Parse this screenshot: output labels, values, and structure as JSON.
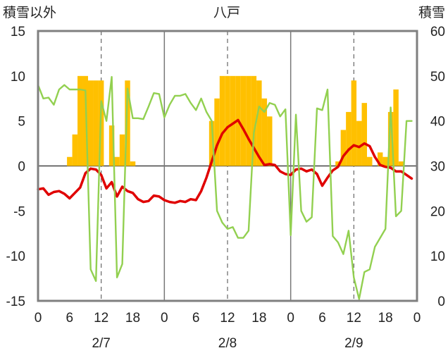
{
  "chart_data": {
    "type": "bar+line",
    "title": "八戸",
    "ylabel_left": "積雪以外",
    "ylabel_right": "積雪",
    "ylim_left": [
      -15,
      15
    ],
    "yticks_left": [
      "15",
      "10",
      "5",
      "0",
      "-5",
      "-10",
      "-15"
    ],
    "ylim_right": [
      0,
      60
    ],
    "yticks_right": [
      "60",
      "50",
      "40",
      "30",
      "20",
      "10",
      "0"
    ],
    "x_range_hours": [
      0,
      72
    ],
    "xtick_labels": [
      "0",
      "6",
      "12",
      "18",
      "0",
      "6",
      "12",
      "18",
      "0",
      "6",
      "12",
      "18",
      "0"
    ],
    "date_labels": [
      "2/7",
      "2/8",
      "2/9"
    ],
    "snow_depth_bars": {
      "axis": "right",
      "color": "#FFC000",
      "x_hour": [
        6,
        7,
        8,
        9,
        10,
        11,
        12,
        14,
        15,
        16,
        17,
        18,
        33,
        34,
        35,
        36,
        37,
        38,
        39,
        40,
        41,
        42,
        43,
        44,
        57,
        58,
        59,
        60,
        61,
        62,
        63,
        64,
        65,
        66,
        67,
        68,
        69
      ],
      "values": [
        32,
        37,
        50,
        50,
        49,
        49,
        49,
        39,
        32,
        37,
        49,
        31,
        40,
        45,
        50,
        50,
        50,
        50,
        50,
        50,
        50,
        49,
        45,
        41,
        31,
        38,
        42,
        49,
        40,
        44,
        32,
        30,
        33,
        32,
        42,
        47,
        31
      ]
    },
    "series": [
      {
        "axis": "left",
        "color": "#E00000",
        "x_hour": [
          0,
          1,
          2,
          3,
          4,
          5,
          6,
          7,
          8,
          9,
          10,
          11,
          12,
          13,
          14,
          15,
          16,
          17,
          18,
          19,
          20,
          21,
          22,
          23,
          24,
          25,
          26,
          27,
          28,
          29,
          30,
          31,
          32,
          33,
          34,
          35,
          36,
          37,
          38,
          39,
          40,
          41,
          42,
          43,
          44,
          45,
          46,
          47,
          48,
          49,
          50,
          51,
          52,
          53,
          54,
          55,
          56,
          57,
          58,
          59,
          60,
          61,
          62,
          63,
          64,
          65,
          66,
          67,
          68,
          69,
          70,
          71
        ],
        "values": [
          -2.6,
          -2.5,
          -3.2,
          -2.9,
          -2.8,
          -3.1,
          -3.6,
          -3.0,
          -2.4,
          -0.8,
          -0.3,
          -0.4,
          -1.0,
          -2.5,
          -1.8,
          -3.4,
          -2.3,
          -2.8,
          -3.0,
          -3.7,
          -4.0,
          -3.9,
          -3.3,
          -3.4,
          -3.8,
          -4.0,
          -4.1,
          -3.9,
          -4.0,
          -3.7,
          -3.8,
          -2.8,
          -1.3,
          0.5,
          2.3,
          3.6,
          4.3,
          4.7,
          5.1,
          4.1,
          3.0,
          2.0,
          1.0,
          0.1,
          0.2,
          0.1,
          -0.6,
          -0.9,
          -1.0,
          -0.4,
          -0.3,
          -0.6,
          -0.4,
          -0.9,
          -2.2,
          -1.3,
          -0.5,
          -0.1,
          1.1,
          1.8,
          2.3,
          2.1,
          2.5,
          2.2,
          1.0,
          0.1,
          -0.1,
          -0.2,
          -0.6,
          -0.6,
          -1.0,
          -1.4
        ]
      },
      {
        "axis": "left",
        "color": "#92D050",
        "x_hour": [
          0,
          1,
          2,
          3,
          4,
          5,
          6,
          7,
          8,
          9,
          10,
          11,
          12,
          13,
          14,
          15,
          16,
          17,
          18,
          19,
          20,
          21,
          22,
          23,
          24,
          25,
          26,
          27,
          28,
          29,
          30,
          31,
          32,
          33,
          34,
          35,
          36,
          37,
          38,
          39,
          40,
          41,
          42,
          43,
          44,
          45,
          46,
          47,
          48,
          49,
          50,
          51,
          52,
          53,
          54,
          55,
          56,
          57,
          58,
          59,
          60,
          61,
          62,
          63,
          64,
          65,
          66,
          67,
          68,
          69,
          70,
          71
        ],
        "values": [
          9.0,
          7.5,
          7.6,
          6.8,
          8.5,
          9.0,
          8.5,
          8.5,
          8.5,
          8.4,
          -11.5,
          -12.8,
          7.2,
          5.0,
          9.9,
          -12.4,
          -10.9,
          8.6,
          5.3,
          5.3,
          5.2,
          6.6,
          8.1,
          8.0,
          5.4,
          6.8,
          7.8,
          7.8,
          8.0,
          7.0,
          6.2,
          7.5,
          6.0,
          5.0,
          -5.0,
          -6.3,
          -7.0,
          -6.8,
          -8.0,
          -8.0,
          -7.2,
          3.7,
          6.6,
          6.0,
          7.0,
          6.8,
          5.5,
          6.3,
          -7.7,
          5.7,
          -5.0,
          -6.2,
          -5.7,
          6.4,
          6.2,
          8.5,
          -7.8,
          -8.5,
          -9.8,
          -7.2,
          -12.4,
          -14.8,
          -11.8,
          -11.5,
          -9.0,
          -8.0,
          -7.0,
          6.5,
          -5.6,
          -5.0,
          5.0,
          5.0
        ]
      },
      {
        "axis": "left",
        "color": "#7030A0",
        "x_hour": [
          0,
          72
        ],
        "values": [
          -15,
          -15
        ]
      }
    ]
  }
}
